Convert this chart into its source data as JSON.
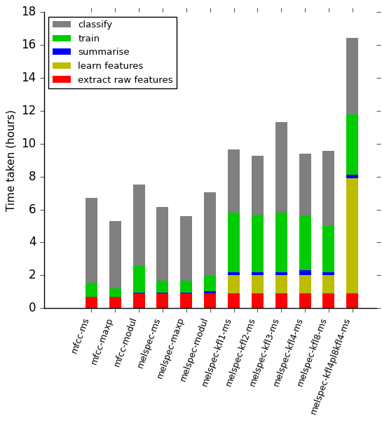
{
  "categories": [
    "mfcc-ms",
    "mfcc-maxp",
    "mfcc-modul",
    "melspec-ms",
    "melspec-maxp",
    "melspec-modul",
    "melspec-kfl1-ms",
    "melspec-kfl2-ms",
    "melspec-kfl3-ms",
    "melspec-kfl4-ms",
    "melspec-kfl8-ms",
    "melspec-kfl4pl8kfl4-ms"
  ],
  "extract_raw_features": [
    0.7,
    0.7,
    0.9,
    0.9,
    0.9,
    0.9,
    0.9,
    0.9,
    0.9,
    0.9,
    0.9,
    0.9
  ],
  "learn_features": [
    0.0,
    0.0,
    0.0,
    0.0,
    0.0,
    0.0,
    1.1,
    1.1,
    1.1,
    1.1,
    1.1,
    7.0
  ],
  "summarise": [
    0.0,
    0.0,
    0.05,
    0.05,
    0.05,
    0.15,
    0.2,
    0.2,
    0.2,
    0.3,
    0.2,
    0.2
  ],
  "train": [
    0.85,
    0.5,
    1.6,
    0.7,
    0.7,
    0.9,
    3.6,
    3.5,
    3.6,
    3.35,
    2.8,
    3.7
  ],
  "classify": [
    5.15,
    4.1,
    4.95,
    4.5,
    3.95,
    5.1,
    3.85,
    3.55,
    5.5,
    3.75,
    4.55,
    4.65
  ],
  "colors": {
    "extract_raw_features": "#ff0000",
    "learn_features": "#bcbc00",
    "summarise": "#0000ff",
    "train": "#00cc00",
    "classify": "#808080"
  },
  "ylabel": "Time taken (hours)",
  "ylim": [
    0,
    18
  ],
  "yticks": [
    0,
    2,
    4,
    6,
    8,
    10,
    12,
    14,
    16,
    18
  ],
  "legend_labels": [
    "classify",
    "train",
    "summarise",
    "learn features",
    "extract raw features"
  ],
  "legend_colors": [
    "#808080",
    "#00cc00",
    "#0000ff",
    "#bcbc00",
    "#ff0000"
  ],
  "bar_width": 0.5,
  "figsize": [
    5.45,
    6.0
  ],
  "dpi": 100
}
